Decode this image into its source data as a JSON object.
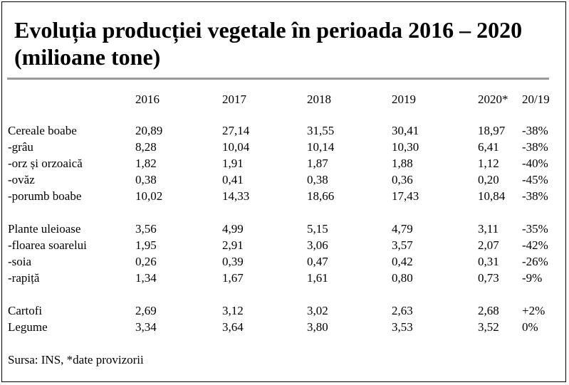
{
  "title": "Evoluția producției vegetale în perioada 2016 – 2020 (milioane tone)",
  "header": [
    "2016",
    "2017",
    "2018",
    "2019",
    "2020*",
    "20/19"
  ],
  "rows": [
    {
      "label": "Cereale boabe",
      "values": [
        "20,89",
        "27,14",
        "31,55",
        "30,41",
        "18,97",
        "-38%"
      ]
    },
    {
      "label": "-grâu",
      "values": [
        "8,28",
        "10,04",
        "10,14",
        "10,30",
        "6,41",
        "-38%"
      ]
    },
    {
      "label": "-orz și orzoaică",
      "values": [
        "1,82",
        "1,91",
        "1,87",
        "1,88",
        "1,12",
        "-40%"
      ]
    },
    {
      "label": "-ovăz",
      "values": [
        "0,38",
        "0,41",
        "0,38",
        "0,36",
        "0,20",
        "-45%"
      ]
    },
    {
      "label": "-porumb boabe",
      "values": [
        "10,02",
        "14,33",
        "18,66",
        "17,43",
        "10,84",
        "-38%"
      ]
    },
    {
      "label": "Plante uleioase",
      "values": [
        "3,56",
        "4,99",
        "5,15",
        "4,79",
        "3,11",
        "-35%"
      ]
    },
    {
      "label": "-floarea soarelui",
      "values": [
        "1,95",
        "2,91",
        "3,06",
        "3,57",
        "2,07",
        "-42%"
      ]
    },
    {
      "label": "-soia",
      "values": [
        "0,26",
        "0,39",
        "0,47",
        "0,42",
        "0,31",
        "-26%"
      ]
    },
    {
      "label": "-rapiță",
      "values": [
        "1,34",
        "1,67",
        "1,61",
        "0,80",
        "0,73",
        "-9%"
      ]
    },
    {
      "label": "Cartofi",
      "values": [
        "2,69",
        "3,12",
        "3,02",
        "2,63",
        "2,68",
        "+2%"
      ]
    },
    {
      "label": "Legume",
      "values": [
        "3,34",
        "3,64",
        "3,80",
        "3,53",
        "3,52",
        "0%"
      ]
    }
  ],
  "source": "Sursa: INS, *date provizorii"
}
